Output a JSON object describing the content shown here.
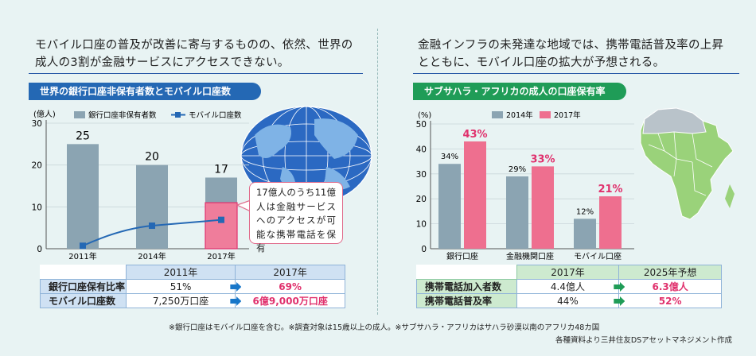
{
  "left": {
    "intro": [
      "モバイル口座の普及が改善に寄与するものの、依然、世界の",
      "成人の3割が金融サービスにアクセスできない。"
    ],
    "section_title": "世界の銀行口座非保有者数とモバイル口座数",
    "callout": "17億人のうち11億人は金融サービスへのアクセスが可能な携帯電話を保有",
    "table": {
      "headers": [
        "2011年",
        "2017年"
      ],
      "rows": [
        {
          "label": "銀行口座保有比率",
          "v2011": "51%",
          "v2017": "69%"
        },
        {
          "label": "モバイル口座数",
          "v2011": "7,250万口座",
          "v2017": "6億9,000万口座"
        }
      ]
    }
  },
  "right": {
    "intro": [
      "金融インフラの未発達な地域では、携帯電話普及率の上昇",
      "とともに、モバイル口座の拡大が予想される。"
    ],
    "section_title": "サブサハラ・アフリカの成人の口座保有率",
    "table": {
      "headers": [
        "2017年",
        "2025年予想"
      ],
      "rows": [
        {
          "label": "携帯電話加入者数",
          "v2017": "4.4億人",
          "v2025": "6.3億人"
        },
        {
          "label": "携帯電話普及率",
          "v2017": "44%",
          "v2025": "52%"
        }
      ]
    }
  },
  "footnote": "※銀行口座はモバイル口座を含む。※調査対象は15歳以上の成人。※サブサハラ・アフリカはサハラ砂漠以南のアフリカ48カ国",
  "source": "各種資料より三井住友DSアセットマネジメント作成",
  "chart_data": [
    {
      "type": "bar",
      "ylabel": "(億人)",
      "ylim": [
        0,
        30
      ],
      "yticks": [
        "0",
        "10",
        "20",
        "30"
      ],
      "categories": [
        "2011年",
        "2014年",
        "2017年"
      ],
      "series": [
        {
          "name": "銀行口座非保有者数",
          "values": [
            25,
            20,
            17
          ],
          "labels": [
            "25",
            "20",
            "17"
          ]
        },
        {
          "name": "モバイル口座数",
          "values": [
            0.7,
            5.5,
            6.9
          ]
        }
      ],
      "highlight_value": 11
    },
    {
      "type": "bar",
      "ylabel": "(%)",
      "ylim": [
        0,
        50
      ],
      "yticks": [
        "0",
        "10",
        "20",
        "30",
        "40",
        "50"
      ],
      "categories": [
        "銀行口座",
        "金融機関口座",
        "モバイル口座"
      ],
      "series": [
        {
          "name": "2014年",
          "values": [
            34,
            29,
            12
          ],
          "labels": [
            "34%",
            "29%",
            "12%"
          ]
        },
        {
          "name": "2017年",
          "values": [
            43,
            33,
            21
          ],
          "labels": [
            "43%",
            "33%",
            "21%"
          ]
        }
      ]
    }
  ],
  "colors": {
    "bar_grey": "#8ba4b2",
    "bar_pink": "#ee6f8f",
    "line_blue": "#2468b4",
    "highlight": "#e0316d",
    "section_blue": "#2468b4",
    "section_green": "#1f9c57"
  }
}
